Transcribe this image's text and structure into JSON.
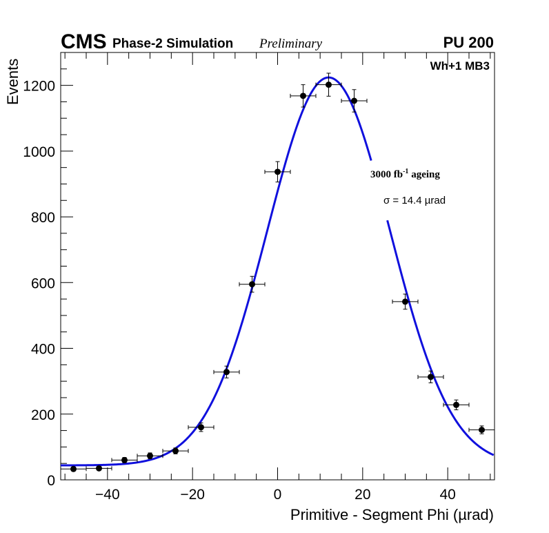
{
  "header": {
    "experiment": "CMS",
    "subtitle": "Phase-2 Simulation",
    "status": "Preliminary",
    "pileup": "PU 200",
    "tag": "Wh+1 MB3"
  },
  "chart_data": {
    "type": "scatter",
    "title": "",
    "xlabel": "Primitive - Segment Phi (µrad)",
    "ylabel": "Events",
    "xlim": [
      -51,
      51
    ],
    "ylim": [
      0,
      1300
    ],
    "xticks": [
      -40,
      -20,
      0,
      20,
      40
    ],
    "xtick_labels": [
      "−40",
      "−20",
      "0",
      "20",
      "40"
    ],
    "yticks": [
      0,
      200,
      400,
      600,
      800,
      1000,
      1200
    ],
    "ytick_labels": [
      "0",
      "200",
      "400",
      "600",
      "800",
      "1000",
      "1200"
    ],
    "grid": false,
    "series": [
      {
        "name": "Data",
        "x": [
          -48,
          -42,
          -36,
          -30,
          -24,
          -18,
          -12,
          -6,
          0,
          6,
          12,
          18,
          30,
          36,
          42,
          48
        ],
        "y": [
          33,
          35,
          60,
          73,
          88,
          160,
          328,
          595,
          937,
          1168,
          1202,
          1153,
          542,
          313,
          228,
          152
        ],
        "yerr": [
          6,
          6,
          8,
          9,
          9,
          13,
          18,
          24,
          31,
          34,
          35,
          34,
          23,
          18,
          15,
          12
        ],
        "xerr": 3
      },
      {
        "name": "Fit",
        "type": "line",
        "color": "#1010dd",
        "model": "gaussian_plus_constant",
        "params": {
          "amplitude": 1180,
          "mean": 12.0,
          "sigma": 14.4,
          "constant": 44
        },
        "gap_x": [
          22,
          25.8
        ]
      }
    ],
    "annotations": [
      {
        "text": "3000 fb",
        "sup": "-1",
        "suffix": " ageing"
      },
      {
        "text": "σ = 14.4 µrad"
      }
    ]
  }
}
